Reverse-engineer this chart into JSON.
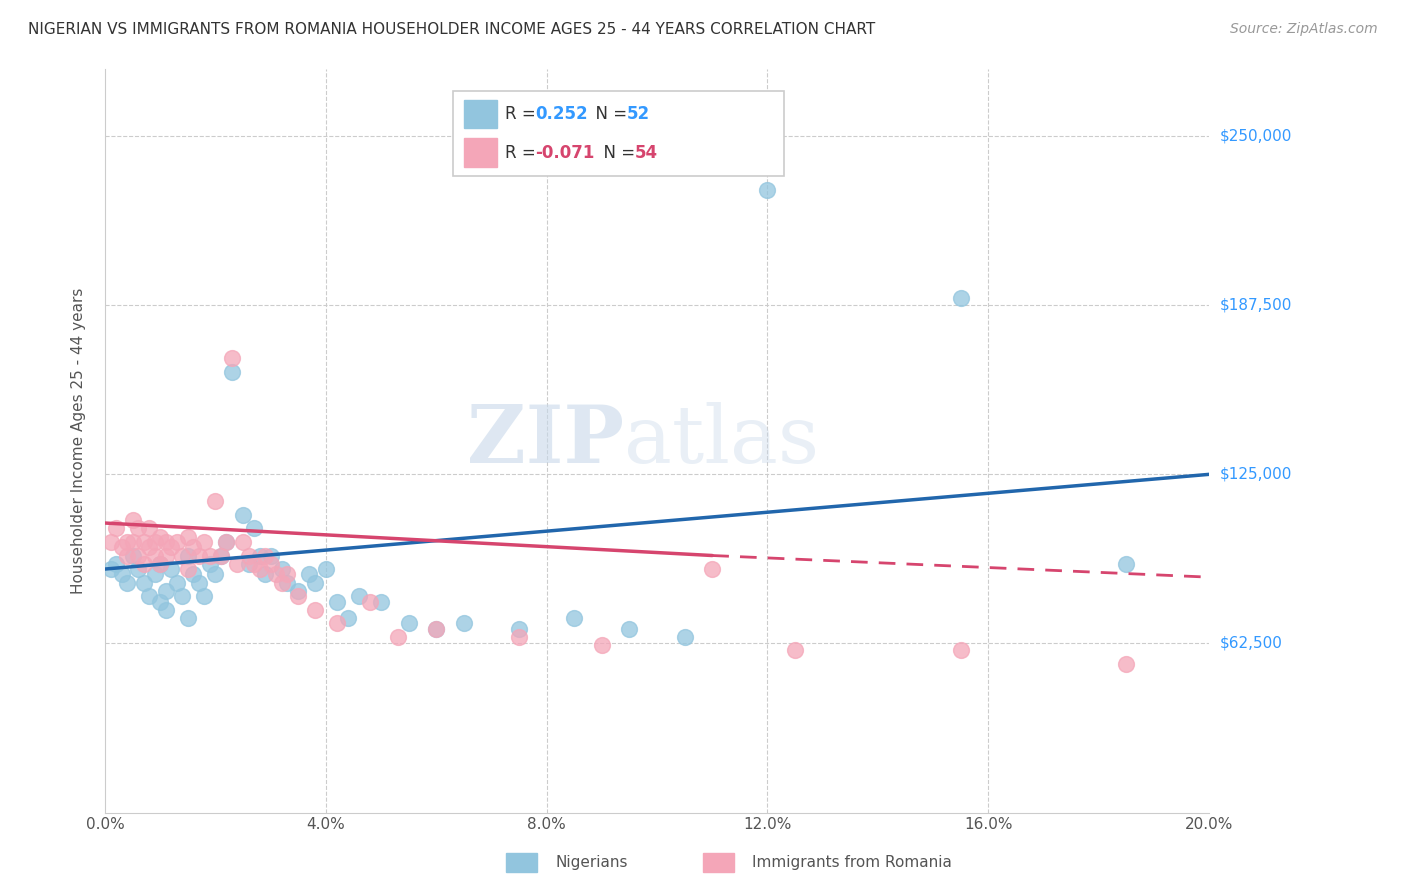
{
  "title": "NIGERIAN VS IMMIGRANTS FROM ROMANIA HOUSEHOLDER INCOME AGES 25 - 44 YEARS CORRELATION CHART",
  "source": "Source: ZipAtlas.com",
  "ylabel": "Householder Income Ages 25 - 44 years",
  "ytick_labels": [
    "$62,500",
    "$125,000",
    "$187,500",
    "$250,000"
  ],
  "ytick_values": [
    62500,
    125000,
    187500,
    250000
  ],
  "ylim": [
    0,
    275000
  ],
  "xlim": [
    0.0,
    0.2
  ],
  "legend_blue_r": "R =  0.252",
  "legend_blue_n": "N = 52",
  "legend_pink_r": "R = -0.071",
  "legend_pink_n": "N = 54",
  "legend_label_blue": "Nigerians",
  "legend_label_pink": "Immigrants from Romania",
  "watermark_zip": "ZIP",
  "watermark_atlas": "atlas",
  "blue_color": "#92c5de",
  "pink_color": "#f4a6b8",
  "blue_line_color": "#2166ac",
  "pink_line_color": "#d6456e",
  "nigerian_x": [
    0.001,
    0.002,
    0.003,
    0.004,
    0.005,
    0.006,
    0.007,
    0.008,
    0.009,
    0.01,
    0.01,
    0.011,
    0.011,
    0.012,
    0.013,
    0.014,
    0.015,
    0.015,
    0.016,
    0.017,
    0.018,
    0.019,
    0.02,
    0.021,
    0.022,
    0.023,
    0.025,
    0.026,
    0.027,
    0.028,
    0.029,
    0.03,
    0.032,
    0.033,
    0.035,
    0.037,
    0.038,
    0.04,
    0.042,
    0.044,
    0.046,
    0.05,
    0.055,
    0.06,
    0.065,
    0.075,
    0.085,
    0.095,
    0.105,
    0.12,
    0.155,
    0.185
  ],
  "nigerian_y": [
    90000,
    92000,
    88000,
    85000,
    95000,
    90000,
    85000,
    80000,
    88000,
    92000,
    78000,
    82000,
    75000,
    90000,
    85000,
    80000,
    95000,
    72000,
    88000,
    85000,
    80000,
    92000,
    88000,
    95000,
    100000,
    163000,
    110000,
    92000,
    105000,
    95000,
    88000,
    95000,
    90000,
    85000,
    82000,
    88000,
    85000,
    90000,
    78000,
    72000,
    80000,
    78000,
    70000,
    68000,
    70000,
    68000,
    72000,
    68000,
    65000,
    230000,
    190000,
    92000
  ],
  "romanian_x": [
    0.001,
    0.002,
    0.003,
    0.004,
    0.004,
    0.005,
    0.005,
    0.006,
    0.006,
    0.007,
    0.007,
    0.008,
    0.008,
    0.009,
    0.009,
    0.01,
    0.01,
    0.011,
    0.011,
    0.012,
    0.013,
    0.014,
    0.015,
    0.015,
    0.016,
    0.017,
    0.018,
    0.019,
    0.02,
    0.021,
    0.022,
    0.023,
    0.024,
    0.025,
    0.026,
    0.027,
    0.028,
    0.029,
    0.03,
    0.031,
    0.032,
    0.033,
    0.035,
    0.038,
    0.042,
    0.048,
    0.053,
    0.06,
    0.075,
    0.09,
    0.11,
    0.125,
    0.155,
    0.185
  ],
  "romanian_y": [
    100000,
    105000,
    98000,
    100000,
    95000,
    108000,
    100000,
    105000,
    95000,
    100000,
    92000,
    105000,
    98000,
    100000,
    95000,
    102000,
    92000,
    100000,
    95000,
    98000,
    100000,
    95000,
    102000,
    90000,
    98000,
    95000,
    100000,
    95000,
    115000,
    95000,
    100000,
    168000,
    92000,
    100000,
    95000,
    92000,
    90000,
    95000,
    92000,
    88000,
    85000,
    88000,
    80000,
    75000,
    70000,
    78000,
    65000,
    68000,
    65000,
    62000,
    90000,
    60000,
    60000,
    55000
  ]
}
